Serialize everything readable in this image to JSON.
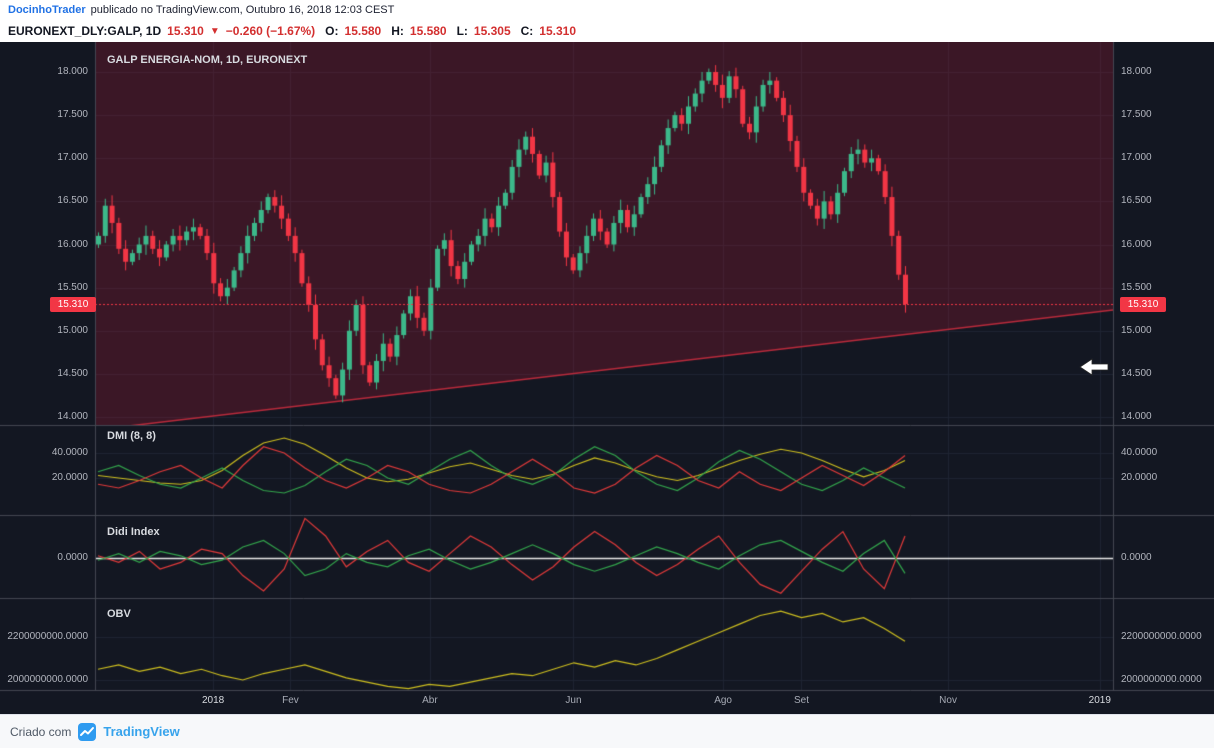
{
  "header": {
    "author": "DocinhoTrader",
    "published": "publicado no TradingView.com, Outubro 16, 2018 12:03 CEST",
    "symbol": "EURONEXT_DLY:GALP, 1D",
    "last_price": "15.310",
    "down_icon": "▼",
    "change": "−0.260 (−1.67%)",
    "ohlc": {
      "o_label": "O:",
      "o": "15.580",
      "h_label": "H:",
      "h": "15.580",
      "l_label": "L:",
      "l": "15.305",
      "c_label": "C:",
      "c": "15.310"
    }
  },
  "panes": {
    "price": {
      "title": "GALP ENERGIA-NOM, 1D, EURONEXT",
      "price_tag": "15.310"
    },
    "dmi": {
      "title": "DMI (8, 8)"
    },
    "didi": {
      "title": "Didi Index"
    },
    "obv": {
      "title": "OBV"
    }
  },
  "footer": {
    "created_with": "Criado com",
    "brand": "TradingView"
  },
  "colors": {
    "bg": "#131722",
    "grid": "#1e2433",
    "divider": "#434651",
    "axis_text": "#b2b5be",
    "up": "#3cb88a",
    "down": "#f23645",
    "header_red": "#d32f2f",
    "author_blue": "#2172e5",
    "dmi_yellow": "#cfc01f",
    "dmi_green": "#33a64c",
    "dmi_red": "#e23a3a",
    "didi_red": "#e23a3a",
    "didi_green": "#33a64c",
    "didi_zero": "#e8e8e8",
    "obv_yellow": "#cfc01f",
    "wedge_fill": "rgba(165,25,50,0.28)",
    "wedge_line": "#bb2b3c",
    "tag_bg": "#f23645"
  },
  "chart_data": {
    "type": "candlestick",
    "symbol": "GALP ENERGIA-NOM",
    "interval": "1D",
    "exchange": "EURONEXT",
    "last_price": 15.31,
    "change": -0.26,
    "change_pct": -1.67,
    "ohlc_today": {
      "open": 15.58,
      "high": 15.58,
      "low": 15.305,
      "close": 15.31
    },
    "ylim": [
      13.9,
      18.2
    ],
    "price_axis_ticks": [
      "18.000",
      "17.500",
      "17.000",
      "16.500",
      "16.000",
      "15.500",
      "15.000",
      "14.500",
      "14.000"
    ],
    "first_open": 16.0,
    "closes": [
      16.1,
      16.45,
      16.25,
      15.95,
      15.8,
      15.9,
      16.0,
      16.1,
      15.95,
      15.85,
      16.0,
      16.1,
      16.05,
      16.15,
      16.2,
      16.1,
      15.9,
      15.55,
      15.4,
      15.5,
      15.7,
      15.9,
      16.1,
      16.25,
      16.4,
      16.55,
      16.45,
      16.3,
      16.1,
      15.9,
      15.55,
      15.3,
      14.9,
      14.6,
      14.45,
      14.25,
      14.55,
      15.0,
      15.3,
      14.6,
      14.4,
      14.65,
      14.85,
      14.7,
      14.95,
      15.2,
      15.4,
      15.15,
      15.0,
      15.5,
      15.95,
      16.05,
      15.75,
      15.6,
      15.8,
      16.0,
      16.1,
      16.3,
      16.2,
      16.45,
      16.6,
      16.9,
      17.1,
      17.25,
      17.05,
      16.8,
      16.95,
      16.55,
      16.15,
      15.85,
      15.7,
      15.9,
      16.1,
      16.3,
      16.15,
      16.0,
      16.25,
      16.4,
      16.2,
      16.35,
      16.55,
      16.7,
      16.9,
      17.15,
      17.35,
      17.5,
      17.4,
      17.6,
      17.75,
      17.9,
      18.0,
      17.85,
      17.7,
      17.95,
      17.8,
      17.4,
      17.3,
      17.6,
      17.85,
      17.9,
      17.7,
      17.5,
      17.2,
      16.9,
      16.6,
      16.45,
      16.3,
      16.5,
      16.35,
      16.6,
      16.85,
      17.05,
      17.1,
      16.95,
      17.0,
      16.85,
      16.55,
      16.1,
      15.65,
      15.31
    ],
    "trendline": {
      "start_price": 13.85,
      "end_price": 15.24,
      "filled_above": true
    },
    "time_ticks": [
      {
        "label": "2018",
        "f": 0.116
      },
      {
        "label": "Fev",
        "f": 0.192
      },
      {
        "label": "Abr",
        "f": 0.329
      },
      {
        "label": "Jun",
        "f": 0.47
      },
      {
        "label": "Ago",
        "f": 0.617
      },
      {
        "label": "Set",
        "f": 0.694
      },
      {
        "label": "Nov",
        "f": 0.838
      },
      {
        "label": "2019",
        "f": 0.987
      }
    ],
    "indicators": [
      {
        "name": "DMI (8, 8)",
        "pane": "dmi",
        "axis_ticks": [
          "40.0000",
          "20.0000"
        ],
        "series": [
          {
            "name": "ADX",
            "color_key": "dmi_yellow",
            "values": [
              22,
              20,
              18,
              16,
              15,
              18,
              26,
              38,
              48,
              52,
              47,
              38,
              28,
              20,
              17,
              19,
              24,
              29,
              32,
              27,
              22,
              19,
              23,
              30,
              36,
              32,
              26,
              21,
              18,
              22,
              28,
              34,
              39,
              43,
              40,
              34,
              27,
              21,
              26,
              34
            ]
          },
          {
            "name": "+DI",
            "color_key": "dmi_green",
            "values": [
              25,
              30,
              22,
              15,
              12,
              20,
              28,
              18,
              10,
              8,
              14,
              25,
              35,
              30,
              20,
              15,
              25,
              35,
              42,
              30,
              20,
              15,
              22,
              35,
              45,
              38,
              25,
              15,
              10,
              20,
              33,
              42,
              35,
              25,
              15,
              10,
              18,
              28,
              20,
              12
            ]
          },
          {
            "name": "-DI",
            "color_key": "dmi_red",
            "values": [
              15,
              12,
              18,
              25,
              30,
              20,
              12,
              30,
              45,
              40,
              28,
              18,
              12,
              20,
              30,
              25,
              15,
              10,
              8,
              15,
              25,
              35,
              25,
              12,
              8,
              15,
              28,
              38,
              30,
              18,
              12,
              25,
              15,
              10,
              20,
              30,
              22,
              14,
              25,
              38
            ]
          }
        ]
      },
      {
        "name": "Didi Index",
        "pane": "didi",
        "axis_ticks": [
          "0.0000"
        ],
        "series": [
          {
            "name": "didi-red",
            "color_key": "didi_red",
            "values": [
              0.01,
              -0.02,
              0.03,
              -0.05,
              -0.02,
              0.04,
              0.02,
              -0.08,
              -0.15,
              -0.05,
              0.18,
              0.1,
              -0.04,
              0.03,
              0.08,
              -0.02,
              -0.06,
              0.02,
              0.1,
              0.05,
              -0.03,
              -0.1,
              -0.04,
              0.05,
              0.12,
              0.06,
              -0.02,
              -0.08,
              -0.03,
              0.04,
              0.1,
              -0.02,
              -0.12,
              -0.16,
              -0.06,
              0.04,
              0.12,
              -0.05,
              -0.14,
              0.1
            ]
          },
          {
            "name": "didi-green",
            "color_key": "didi_green",
            "values": [
              -0.01,
              0.02,
              -0.02,
              0.03,
              0.01,
              -0.03,
              -0.01,
              0.05,
              0.08,
              0.02,
              -0.08,
              -0.05,
              0.02,
              -0.02,
              -0.04,
              0.01,
              0.04,
              -0.01,
              -0.05,
              -0.02,
              0.02,
              0.06,
              0.02,
              -0.03,
              -0.06,
              -0.03,
              0.01,
              0.05,
              0.02,
              -0.02,
              -0.05,
              0.01,
              0.06,
              0.08,
              0.03,
              -0.02,
              -0.06,
              0.02,
              0.08,
              -0.07
            ]
          }
        ]
      },
      {
        "name": "OBV",
        "pane": "obv",
        "axis_ticks": [
          "2200000000.0000",
          "2000000000.0000"
        ],
        "series": [
          {
            "name": "obv",
            "color_key": "obv_yellow",
            "values": [
              2050000000,
              2070000000,
              2040000000,
              2060000000,
              2030000000,
              2050000000,
              2020000000,
              2000000000,
              2030000000,
              2050000000,
              2070000000,
              2040000000,
              2010000000,
              1990000000,
              1970000000,
              1960000000,
              1980000000,
              1970000000,
              1990000000,
              2010000000,
              2030000000,
              2020000000,
              2050000000,
              2080000000,
              2060000000,
              2090000000,
              2070000000,
              2100000000,
              2140000000,
              2180000000,
              2220000000,
              2260000000,
              2300000000,
              2320000000,
              2290000000,
              2310000000,
              2270000000,
              2290000000,
              2240000000,
              2180000000
            ]
          }
        ]
      }
    ]
  }
}
